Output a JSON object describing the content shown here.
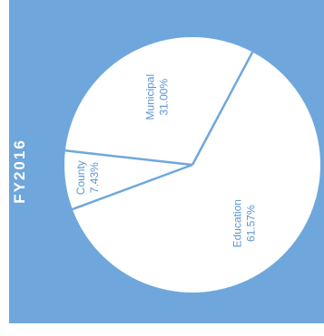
{
  "chart_data": {
    "type": "pie",
    "title": "FY2016",
    "slices": [
      {
        "name": "Education",
        "value": 61.57,
        "label": "61.57%"
      },
      {
        "name": "County",
        "value": 7.43,
        "label": "7.43%"
      },
      {
        "name": "Municipal",
        "value": 31.0,
        "label": "31.00%"
      }
    ]
  },
  "colors": {
    "panel": "#6fa7dc",
    "slice_fill": "#ffffff",
    "divider": "#6fa7dc",
    "label": "#5b95cf"
  }
}
